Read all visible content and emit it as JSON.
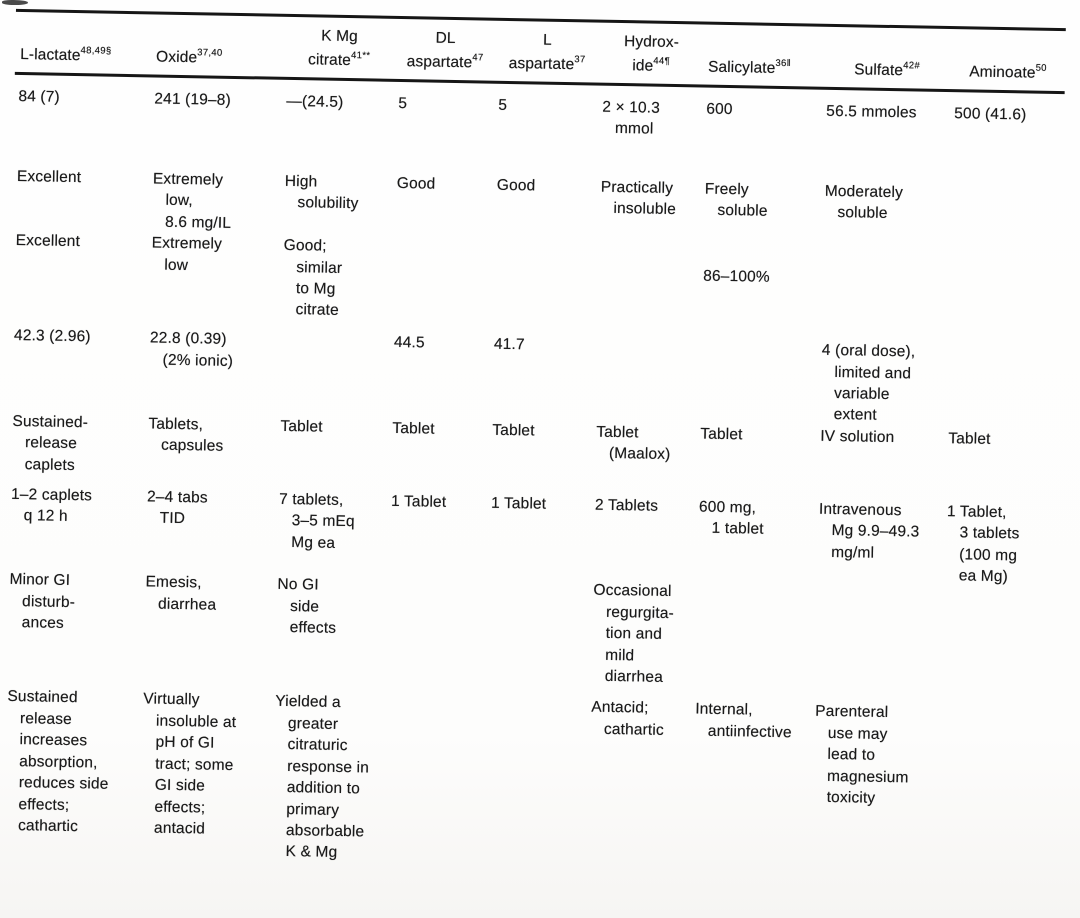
{
  "table": {
    "columns": [
      {
        "line1": "",
        "line2": "L-lactate",
        "sup": "48,49§"
      },
      {
        "line1": "",
        "line2": "Oxide",
        "sup": "37,40"
      },
      {
        "line1": "K Mg",
        "line2": "citrate",
        "sup": "41**"
      },
      {
        "line1": "DL",
        "line2": "aspartate",
        "sup": "47"
      },
      {
        "line1": "L",
        "line2": "aspartate",
        "sup": "37"
      },
      {
        "line1": "Hydrox-",
        "line2": "ide",
        "sup": "44¶"
      },
      {
        "line1": "",
        "line2": "Salicylate",
        "sup": "36‖"
      },
      {
        "line1": "",
        "line2": "Sulfate",
        "sup": "42#"
      },
      {
        "line1": "",
        "line2": "Aminoate",
        "sup": "50"
      }
    ],
    "rows": [
      {
        "cells": [
          "84 (7)",
          "241 (19–8)",
          "—(24.5)",
          "5",
          "5",
          "2 × 10.3\nmmol",
          "600",
          "56.5 mmoles",
          "500 (41.6)"
        ]
      },
      {
        "cells": [
          "Excellent",
          "Extremely\nlow,\n8.6 mg/IL",
          "High\nsolubility",
          "Good",
          "Good",
          "Practically\ninsoluble",
          "Freely\nsoluble",
          "Moderately\nsoluble",
          ""
        ]
      },
      {
        "cells": [
          "Excellent",
          "Extremely\nlow",
          "Good;\nsimilar\nto Mg\ncitrate",
          "",
          "",
          "",
          "86–100%",
          "",
          ""
        ]
      },
      {
        "cells": [
          "42.3 (2.96)",
          "22.8 (0.39)\n(2% ionic)",
          "",
          "44.5",
          "41.7",
          "",
          "",
          "4 (oral dose),\nlimited and\nvariable\nextent",
          ""
        ]
      },
      {
        "cells": [
          "Sustained-\nrelease\ncaplets",
          "Tablets,\ncapsules",
          "Tablet",
          "Tablet",
          "Tablet",
          "Tablet\n(Maalox)",
          "Tablet",
          "IV solution",
          "Tablet"
        ]
      },
      {
        "cells": [
          "1–2 caplets\nq 12 h",
          "2–4 tabs\nTID",
          "7 tablets,\n3–5 mEq\nMg ea",
          "1 Tablet",
          "1 Tablet",
          "2 Tablets",
          "600 mg,\n1 tablet",
          "Intravenous\nMg 9.9–49.3\nmg/ml",
          "1 Tablet,\n3 tablets\n(100 mg\nea Mg)"
        ]
      },
      {
        "cells": [
          "Minor GI\ndisturb-\nances",
          "Emesis,\ndiarrhea",
          "No GI\nside\neffects",
          "",
          "",
          "Occasional\nregurgita-\ntion and\nmild\ndiarrhea",
          "",
          "",
          ""
        ]
      },
      {
        "cells": [
          "Sustained\nrelease\nincreases\nabsorption,\nreduces side\neffects;\ncathartic",
          "Virtually\ninsoluble at\npH of GI\ntract; some\nGI side\neffects;\nantacid",
          "Yielded a\ngreater\ncitraturic\nresponse in\naddition to\nprimary\nabsorbable\nK & Mg",
          "",
          "",
          "Antacid;\ncathartic",
          "Internal,\nantiinfective",
          "Parenteral\nuse may\nlead to\nmagnesium\ntoxicity",
          ""
        ]
      }
    ]
  }
}
